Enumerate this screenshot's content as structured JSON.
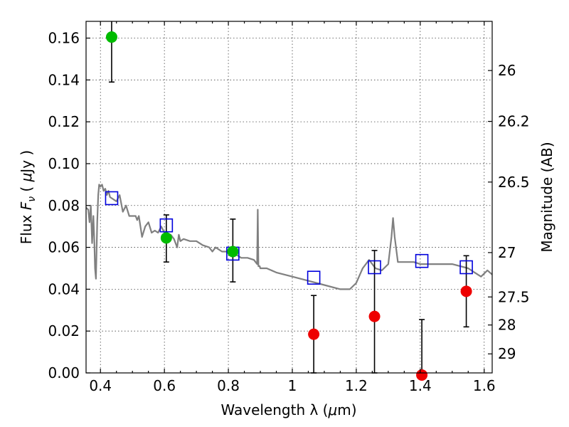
{
  "chart_data": {
    "type": "scatter",
    "xlabel": "Wavelength  λ (μm)",
    "ylabel": "Flux  F_ν  ( μJy )",
    "y2label": "Magnitude (AB)",
    "xlim": [
      0.355,
      1.625
    ],
    "ylim": [
      0.0,
      0.168
    ],
    "grid": true,
    "x_ticks": [
      0.4,
      0.6,
      0.8,
      1.0,
      1.2,
      1.4,
      1.6
    ],
    "x_tick_labels": [
      "0.4",
      "0.6",
      "0.8",
      "1",
      "1.2",
      "1.4",
      "1.6"
    ],
    "y_ticks": [
      0.0,
      0.02,
      0.04,
      0.06,
      0.08,
      0.1,
      0.12,
      0.14,
      0.16
    ],
    "y_tick_labels": [
      "0.00",
      "0.02",
      "0.04",
      "0.06",
      "0.08",
      "0.10",
      "0.12",
      "0.14",
      "0.16"
    ],
    "y2_ticks": [
      {
        "label": "26",
        "flux": 0.1445
      },
      {
        "label": "26.2",
        "flux": 0.1202
      },
      {
        "label": "26.5",
        "flux": 0.0912
      },
      {
        "label": "27",
        "flux": 0.0575
      },
      {
        "label": "27.5",
        "flux": 0.0363
      },
      {
        "label": "28",
        "flux": 0.0229
      },
      {
        "label": "29",
        "flux": 0.0091
      }
    ],
    "colors": {
      "detected": "#00bb00",
      "upper_limit": "#ee0000",
      "model_band": "#0000dd",
      "sed": "#808080"
    },
    "series": [
      {
        "kind": "detected",
        "points": [
          {
            "x": 0.435,
            "y": 0.1605,
            "err_low": 0.0215,
            "err_high": 0.016
          },
          {
            "x": 0.606,
            "y": 0.0645,
            "err_low": 0.0115,
            "err_high": 0.011
          },
          {
            "x": 0.814,
            "y": 0.058,
            "err_low": 0.0145,
            "err_high": 0.0155
          }
        ]
      },
      {
        "kind": "upper_limit",
        "points": [
          {
            "x": 1.067,
            "y": 0.0185,
            "err_low": 0.0185,
            "err_high": 0.0185
          },
          {
            "x": 1.257,
            "y": 0.027,
            "err_low": 0.027,
            "err_high": 0.0315
          },
          {
            "x": 1.405,
            "y": -0.001,
            "err_low": 0.0,
            "err_high": 0.0265
          },
          {
            "x": 1.544,
            "y": 0.039,
            "err_low": 0.017,
            "err_high": 0.017
          }
        ]
      },
      {
        "kind": "model_band",
        "points": [
          {
            "x": 0.435,
            "y": 0.0835
          },
          {
            "x": 0.606,
            "y": 0.0705
          },
          {
            "x": 0.814,
            "y": 0.057
          },
          {
            "x": 1.067,
            "y": 0.0455
          },
          {
            "x": 1.257,
            "y": 0.0505
          },
          {
            "x": 1.405,
            "y": 0.0535
          },
          {
            "x": 1.544,
            "y": 0.0505
          }
        ]
      },
      {
        "kind": "sed",
        "x": [
          0.355,
          0.362,
          0.366,
          0.37,
          0.374,
          0.378,
          0.381,
          0.383,
          0.386,
          0.39,
          0.393,
          0.396,
          0.4,
          0.405,
          0.41,
          0.415,
          0.42,
          0.425,
          0.43,
          0.44,
          0.45,
          0.46,
          0.47,
          0.48,
          0.49,
          0.5,
          0.51,
          0.515,
          0.52,
          0.53,
          0.54,
          0.55,
          0.56,
          0.57,
          0.58,
          0.59,
          0.6,
          0.61,
          0.62,
          0.63,
          0.64,
          0.645,
          0.65,
          0.66,
          0.68,
          0.7,
          0.72,
          0.74,
          0.75,
          0.76,
          0.78,
          0.8,
          0.82,
          0.84,
          0.86,
          0.88,
          0.89,
          0.892,
          0.894,
          0.896,
          0.898,
          0.9,
          0.92,
          0.95,
          1.0,
          1.05,
          1.1,
          1.15,
          1.18,
          1.2,
          1.22,
          1.24,
          1.26,
          1.28,
          1.3,
          1.31,
          1.315,
          1.32,
          1.33,
          1.35,
          1.38,
          1.4,
          1.45,
          1.5,
          1.55,
          1.57,
          1.59,
          1.61,
          1.625
        ],
        "y": [
          0.079,
          0.078,
          0.072,
          0.08,
          0.062,
          0.075,
          0.062,
          0.05,
          0.045,
          0.072,
          0.085,
          0.09,
          0.089,
          0.09,
          0.087,
          0.088,
          0.085,
          0.087,
          0.084,
          0.083,
          0.082,
          0.085,
          0.077,
          0.08,
          0.075,
          0.075,
          0.075,
          0.073,
          0.075,
          0.065,
          0.07,
          0.072,
          0.067,
          0.068,
          0.067,
          0.07,
          0.067,
          0.066,
          0.066,
          0.064,
          0.06,
          0.066,
          0.063,
          0.064,
          0.063,
          0.063,
          0.061,
          0.06,
          0.058,
          0.06,
          0.058,
          0.058,
          0.057,
          0.055,
          0.055,
          0.054,
          0.052,
          0.078,
          0.051,
          0.051,
          0.051,
          0.05,
          0.05,
          0.048,
          0.046,
          0.044,
          0.042,
          0.04,
          0.04,
          0.043,
          0.05,
          0.054,
          0.05,
          0.049,
          0.052,
          0.065,
          0.074,
          0.065,
          0.053,
          0.053,
          0.053,
          0.052,
          0.052,
          0.052,
          0.05,
          0.048,
          0.046,
          0.049,
          0.047
        ]
      }
    ]
  }
}
